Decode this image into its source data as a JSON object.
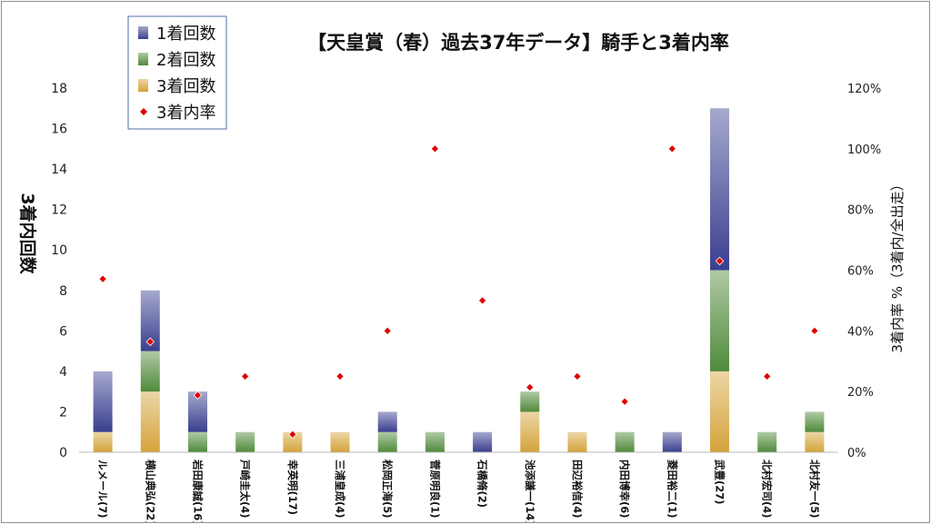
{
  "chart_data": {
    "type": "bar",
    "stacked": true,
    "title": "【天皇賞（春）過去37年データ】騎手と3着内率",
    "ylabel_left": "3着内回数",
    "ylabel_right": "3着内率 %（3着内/全出走）",
    "ylim_left": [
      0,
      18
    ],
    "yticks_left": [
      "0",
      "2",
      "4",
      "6",
      "8",
      "10",
      "12",
      "14",
      "16",
      "18"
    ],
    "ylim_right": [
      0,
      1.2
    ],
    "yticks_right": [
      "0%",
      "20%",
      "40%",
      "60%",
      "80%",
      "100%",
      "120%"
    ],
    "grid": false,
    "legend_position": "top-left",
    "categories": [
      "ルメール(7)",
      "横山典弘(22)",
      "岩田康誠(16)",
      "戸崎圭太(4)",
      "幸英明(17)",
      "三浦皇成(4)",
      "松岡正海(5)",
      "菅原明良(1)",
      "石橋脩(2)",
      "池添謙一(14)",
      "田辺裕信(4)",
      "内田博幸(6)",
      "菱田裕二(1)",
      "武豊(27)",
      "北村宏司(4)",
      "北村友一(5)"
    ],
    "series": [
      {
        "name": "1着回数",
        "type": "bar",
        "color": "#3a3f8f",
        "values": [
          3,
          3,
          2,
          0,
          0,
          0,
          1,
          0,
          1,
          0,
          0,
          0,
          1,
          8,
          0,
          0
        ]
      },
      {
        "name": "2着回数",
        "type": "bar",
        "color": "#4f8a3a",
        "values": [
          0,
          2,
          1,
          1,
          0,
          0,
          1,
          1,
          0,
          1,
          0,
          1,
          0,
          5,
          1,
          1
        ]
      },
      {
        "name": "3着回数",
        "type": "bar",
        "color": "#d4a33a",
        "values": [
          1,
          3,
          0,
          0,
          1,
          1,
          0,
          0,
          0,
          2,
          1,
          0,
          0,
          4,
          0,
          1
        ]
      },
      {
        "name": "3着内率",
        "type": "scatter",
        "axis": "right",
        "color": "#e00000",
        "values": [
          0.571,
          0.364,
          0.188,
          0.25,
          0.059,
          0.25,
          0.4,
          1.0,
          0.5,
          0.214,
          0.25,
          0.167,
          1.0,
          0.63,
          0.25,
          0.4
        ]
      }
    ]
  }
}
